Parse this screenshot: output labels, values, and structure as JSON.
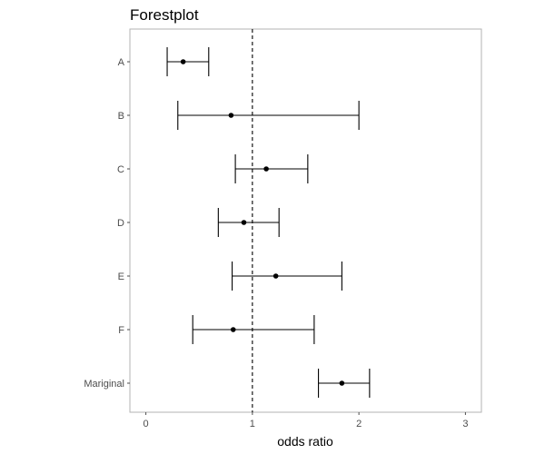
{
  "chart_data": {
    "type": "forest",
    "title": "Forestplot",
    "xlabel": "odds ratio",
    "ylabel": "",
    "xlim": [
      -0.15,
      3.15
    ],
    "x_ticks": [
      "0",
      "1",
      "2",
      "3"
    ],
    "reference_line": 1,
    "grid": false,
    "colors": {
      "panel_border": "#b3b3b3",
      "marks": "#000000",
      "tick_label": "#4d4d4d"
    },
    "rows": [
      {
        "label": "A",
        "estimate": 0.35,
        "lower": 0.2,
        "upper": 0.59
      },
      {
        "label": "B",
        "estimate": 0.8,
        "lower": 0.3,
        "upper": 2.0
      },
      {
        "label": "C",
        "estimate": 1.13,
        "lower": 0.84,
        "upper": 1.52
      },
      {
        "label": "D",
        "estimate": 0.92,
        "lower": 0.68,
        "upper": 1.25
      },
      {
        "label": "E",
        "estimate": 1.22,
        "lower": 0.81,
        "upper": 1.84
      },
      {
        "label": "F",
        "estimate": 0.82,
        "lower": 0.44,
        "upper": 1.58
      },
      {
        "label": "Mariginal",
        "estimate": 1.84,
        "lower": 1.62,
        "upper": 2.1
      }
    ]
  }
}
